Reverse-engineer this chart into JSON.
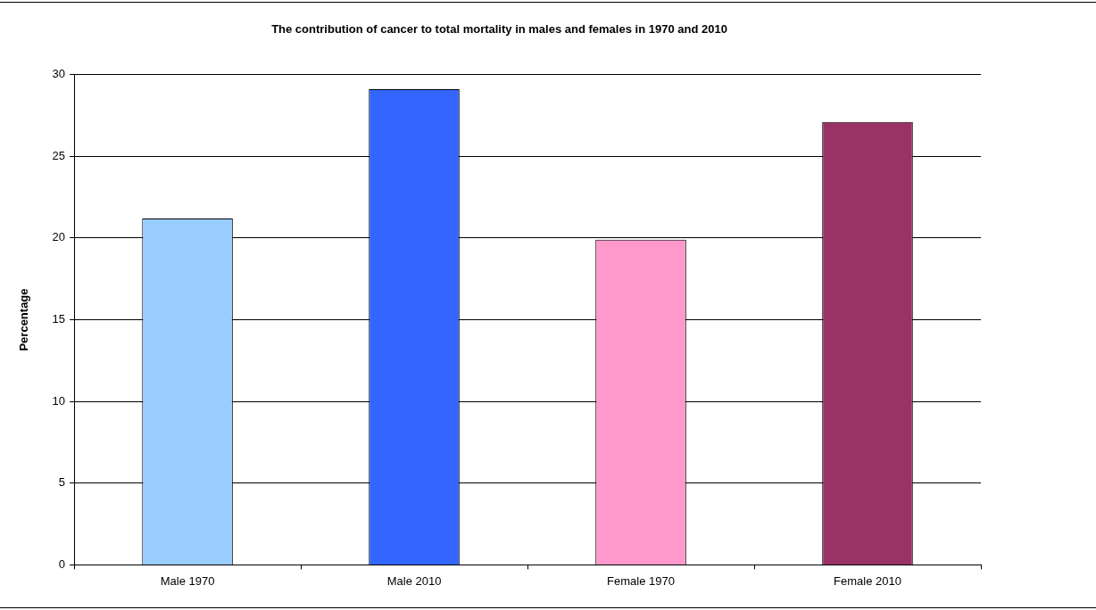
{
  "chart_data": {
    "type": "bar",
    "title": "The contribution of cancer to total mortality in males and females in 1970 and 2010",
    "ylabel": "Percentage",
    "categories": [
      "Male 1970",
      "Male 2010",
      "Female 1970",
      "Female 2010"
    ],
    "values": [
      21.2,
      29.1,
      19.9,
      27.1
    ],
    "colors": [
      "#99ccff",
      "#3366ff",
      "#ff99cc",
      "#993366"
    ],
    "ylim": [
      0,
      30
    ],
    "yticks": [
      0,
      5,
      10,
      15,
      20,
      25,
      30
    ],
    "grid": "y",
    "legend": false
  }
}
